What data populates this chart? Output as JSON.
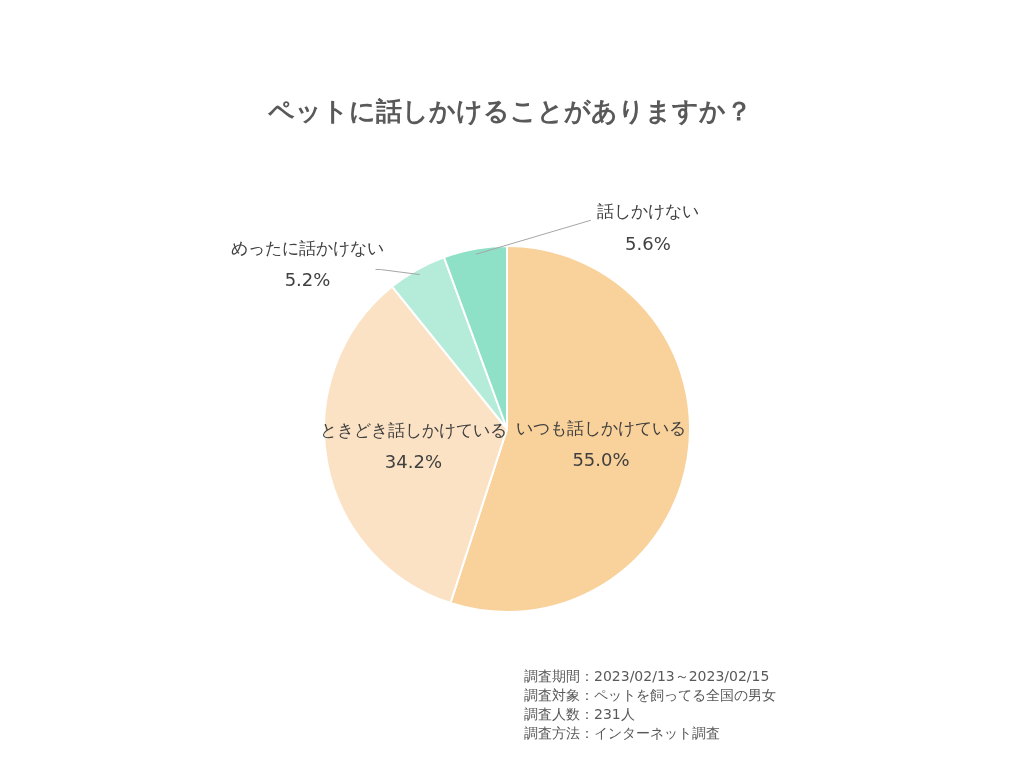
{
  "chart_data": {
    "type": "pie",
    "title": "ペットに話しかけることがありますか？",
    "categories": [
      "いつも話しかけている",
      "ときどき話しかけている",
      "めったに話かけない",
      "話しかけない"
    ],
    "values": [
      55.0,
      34.2,
      5.2,
      5.6
    ],
    "colors": [
      "#f9d19a",
      "#fbe2c4",
      "#b5ebd9",
      "#8ee0c6"
    ],
    "value_labels": [
      "55.0%",
      "34.2%",
      "5.2%",
      "5.6%"
    ],
    "annotations": [
      "調査期間：2023/02/13～2023/02/15",
      "調査対象：ペットを飼ってる全国の男女",
      "調査人数：231人",
      "調査方法：インターネット調査"
    ]
  }
}
